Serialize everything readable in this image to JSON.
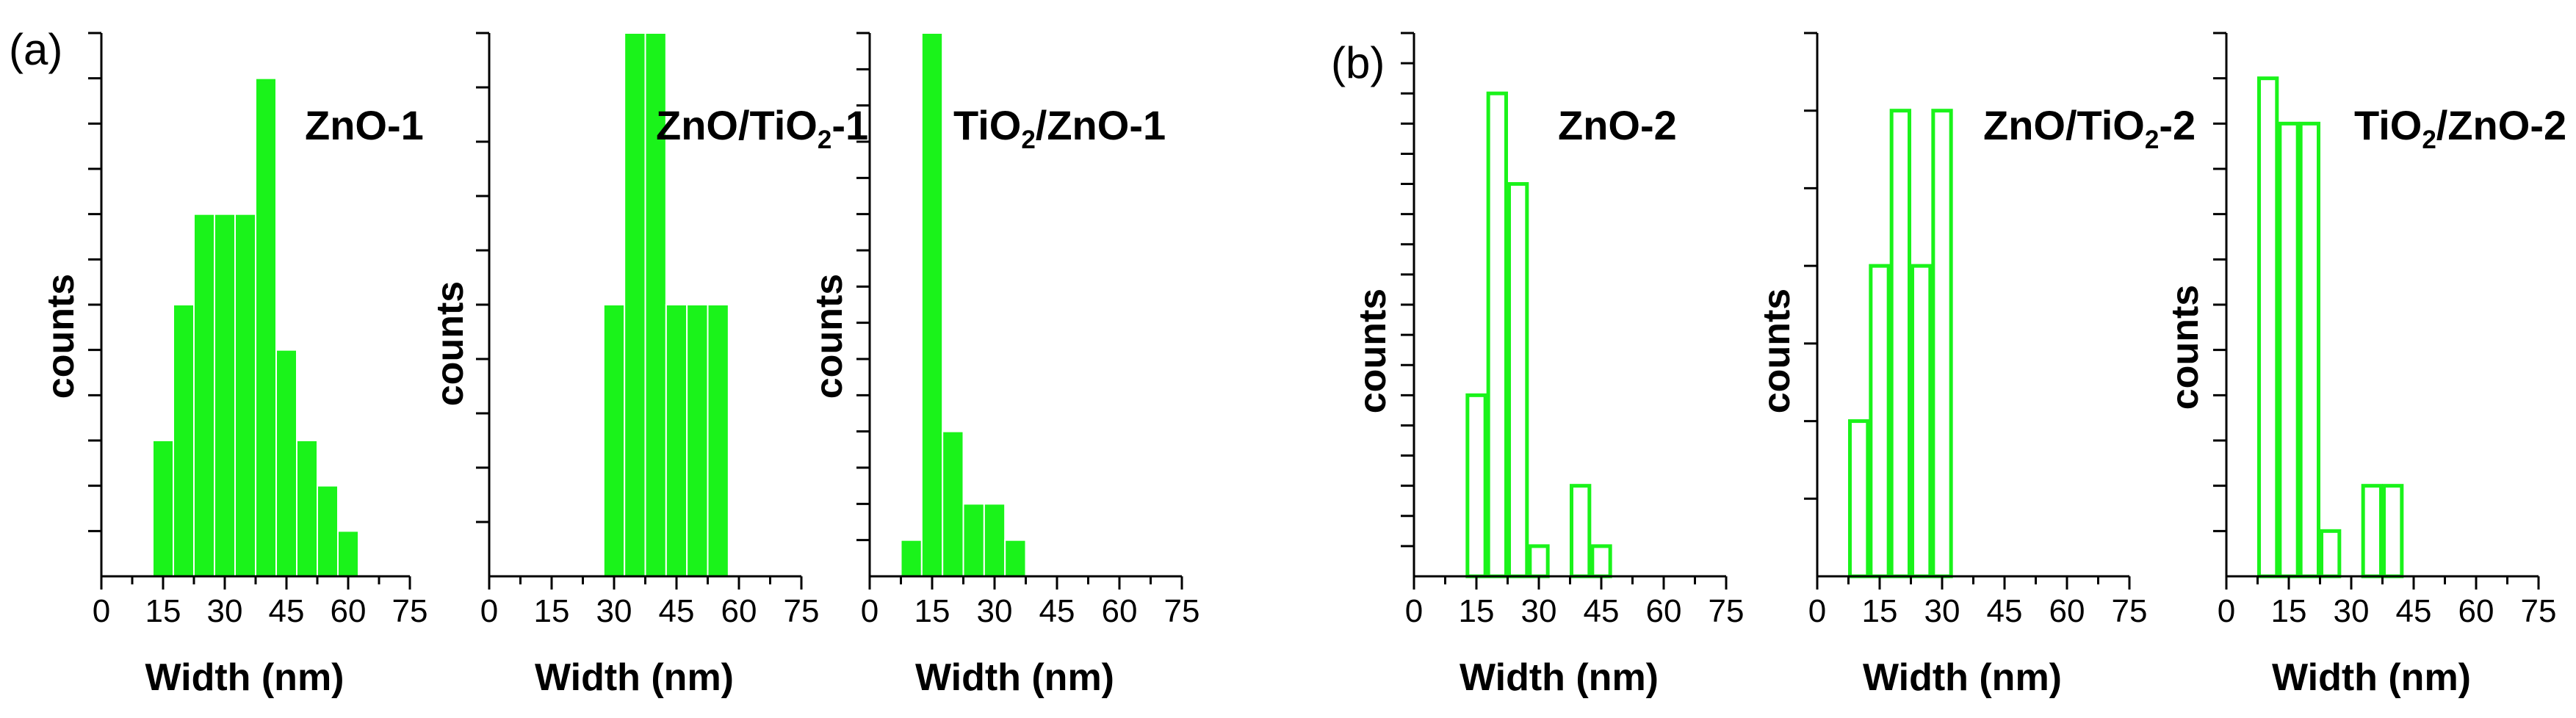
{
  "figure": {
    "panel_labels": [
      "(a)",
      "(b)"
    ]
  },
  "colors": {
    "bar": "#1AF31A",
    "axis": "#000000"
  },
  "chart_data": [
    {
      "type": "bar",
      "panel": "(a)",
      "title": "ZnO-1",
      "xlabel": "Width (nm)",
      "ylabel": "counts",
      "xlim": [
        0,
        75
      ],
      "xticks": [
        "0",
        "15",
        "30",
        "45",
        "60",
        "75"
      ],
      "ylim": [
        0,
        12
      ],
      "bin_width": 5,
      "fill": true,
      "x": [
        15,
        20,
        25,
        30,
        35,
        40,
        45,
        50,
        55,
        60,
        65
      ],
      "values": [
        3,
        6,
        8,
        8,
        8,
        11,
        5,
        3,
        2,
        1,
        0
      ]
    },
    {
      "type": "bar",
      "panel": "(a)",
      "title": "ZnO/TiO2-1",
      "xlabel": "Width (nm)",
      "ylabel": "counts",
      "xlim": [
        0,
        75
      ],
      "xticks": [
        "0",
        "15",
        "30",
        "45",
        "60",
        "75"
      ],
      "ylim": [
        0,
        10
      ],
      "bin_width": 5,
      "fill": true,
      "x": [
        30,
        35,
        40,
        45,
        50,
        55
      ],
      "values": [
        5,
        10,
        10,
        5,
        5,
        5
      ]
    },
    {
      "type": "bar",
      "panel": "(a)",
      "title": "TiO2/ZnO-1",
      "xlabel": "Width (nm)",
      "ylabel": "counts",
      "xlim": [
        0,
        75
      ],
      "xticks": [
        "0",
        "15",
        "30",
        "45",
        "60",
        "75"
      ],
      "ylim": [
        0,
        15
      ],
      "bin_width": 5,
      "fill": true,
      "x": [
        10,
        15,
        20,
        25,
        30,
        35
      ],
      "values": [
        1,
        15,
        4,
        2,
        2,
        1
      ]
    },
    {
      "type": "bar",
      "panel": "(b)",
      "title": "ZnO-2",
      "xlabel": "Width (nm)",
      "ylabel": "counts",
      "xlim": [
        0,
        75
      ],
      "xticks": [
        "0",
        "15",
        "30",
        "45",
        "60",
        "75"
      ],
      "ylim": [
        0,
        18
      ],
      "bin_width": 5,
      "fill": false,
      "x": [
        15,
        20,
        25,
        30,
        35,
        40,
        45
      ],
      "values": [
        6,
        16,
        13,
        1,
        0,
        3,
        1
      ]
    },
    {
      "type": "bar",
      "panel": "(b)",
      "title": "ZnO/TiO2-2",
      "xlabel": "Width (nm)",
      "ylabel": "counts",
      "xlim": [
        0,
        75
      ],
      "xticks": [
        "0",
        "15",
        "30",
        "45",
        "60",
        "75"
      ],
      "ylim": [
        0,
        7
      ],
      "bin_width": 5,
      "fill": false,
      "x": [
        10,
        15,
        20,
        25,
        30,
        35
      ],
      "values": [
        2,
        4,
        6,
        4,
        6,
        0
      ]
    },
    {
      "type": "bar",
      "panel": "(b)",
      "title": "TiO2/ZnO-2",
      "xlabel": "Width (nm)",
      "ylabel": "counts",
      "xlim": [
        0,
        75
      ],
      "xticks": [
        "0",
        "15",
        "30",
        "45",
        "60",
        "75"
      ],
      "ylim": [
        0,
        12
      ],
      "bin_width": 5,
      "fill": false,
      "x": [
        10,
        15,
        20,
        25,
        30,
        35,
        40
      ],
      "values": [
        11,
        10,
        10,
        1,
        0,
        2,
        2
      ]
    }
  ]
}
